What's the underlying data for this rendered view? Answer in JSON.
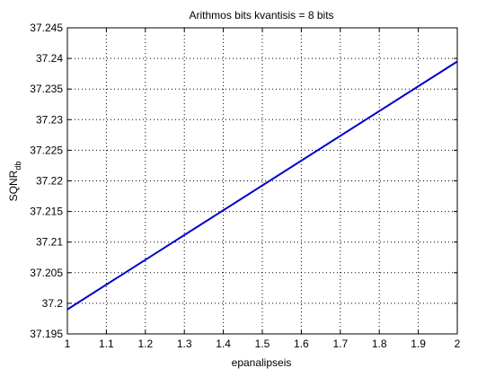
{
  "chart_data": {
    "type": "line",
    "title": "Arithmos bits kvantisis = 8 bits",
    "xlabel": "epanalipseis",
    "ylabel": "SQNR",
    "ylabel_subscript": "db",
    "xlim": [
      1,
      2
    ],
    "ylim": [
      37.195,
      37.245
    ],
    "x_ticks": [
      "1",
      "1.1",
      "1.2",
      "1.3",
      "1.4",
      "1.5",
      "1.6",
      "1.7",
      "1.8",
      "1.9",
      "2"
    ],
    "y_ticks": [
      "37.195",
      "37.2",
      "37.205",
      "37.21",
      "37.215",
      "37.22",
      "37.225",
      "37.23",
      "37.235",
      "37.24",
      "37.245"
    ],
    "grid": true,
    "series": [
      {
        "x": [
          1,
          2
        ],
        "y": [
          37.199,
          37.2395
        ],
        "color": "#0000cc"
      }
    ]
  }
}
